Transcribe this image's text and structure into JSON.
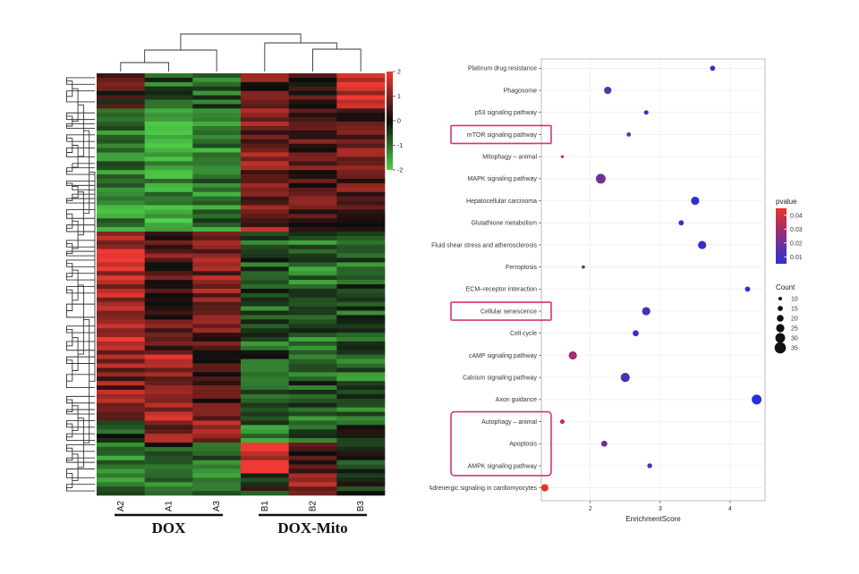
{
  "chart_data": [
    {
      "type": "heatmap",
      "columns": [
        "A2",
        "A1",
        "A3",
        "B1",
        "B2",
        "B3"
      ],
      "groups": [
        {
          "label": "DOX",
          "columns": [
            "A2",
            "A1",
            "A3"
          ]
        },
        {
          "label": "DOX-Mito",
          "columns": [
            "B1",
            "B2",
            "B3"
          ]
        }
      ],
      "colorbar": {
        "min": -2,
        "max": 2,
        "ticks": [
          "2",
          "1",
          "0",
          "-1",
          "-2"
        ],
        "colors": [
          "#4fd04a",
          "#0c0c0c",
          "#ee3a32"
        ]
      },
      "row_dendrogram": true,
      "column_dendrogram": true
    },
    {
      "type": "scatter",
      "xlabel": "EnrichmentScore",
      "xlim": [
        1.3,
        4.5
      ],
      "xticks": [
        "2",
        "3",
        "4"
      ],
      "legend_color_title": "pvalue",
      "legend_color_ticks": [
        "0.04",
        "0.03",
        "0.02",
        "0.01"
      ],
      "legend_color_range": [
        0.005,
        0.045
      ],
      "legend_size_title": "Count",
      "legend_size_ticks": [
        "10",
        "15",
        "20",
        "25",
        "30",
        "35"
      ],
      "highlighted": [
        "mTOR signaling pathway",
        "Cellular senescence",
        "Autophagy – animal",
        "Apoptosis",
        "AMPK signaling pathway"
      ],
      "points": [
        {
          "term": "Platinum drug resistance",
          "score": 3.75,
          "count": 15,
          "pvalue": 0.008
        },
        {
          "term": "Phagosome",
          "score": 2.25,
          "count": 22,
          "pvalue": 0.015
        },
        {
          "term": "p53 signaling pathway",
          "score": 2.8,
          "count": 13,
          "pvalue": 0.01
        },
        {
          "term": "mTOR signaling pathway",
          "score": 2.55,
          "count": 12,
          "pvalue": 0.015
        },
        {
          "term": "Mitophagy – animal",
          "score": 1.6,
          "count": 8,
          "pvalue": 0.035
        },
        {
          "term": "MAPK signaling pathway",
          "score": 2.15,
          "count": 30,
          "pvalue": 0.02
        },
        {
          "term": "Hepatocellular carcinoma",
          "score": 3.5,
          "count": 25,
          "pvalue": 0.006
        },
        {
          "term": "Glutathione metabolism",
          "score": 3.3,
          "count": 15,
          "pvalue": 0.008
        },
        {
          "term": "Fluid shear stress and atherosclerosis",
          "score": 3.6,
          "count": 25,
          "pvalue": 0.007
        },
        {
          "term": "Ferroptosis",
          "score": 1.9,
          "count": 9,
          "pvalue": 0.02
        },
        {
          "term": "ECM–receptor interaction",
          "score": 4.25,
          "count": 15,
          "pvalue": 0.005
        },
        {
          "term": "Cellular senescence",
          "score": 2.8,
          "count": 25,
          "pvalue": 0.012
        },
        {
          "term": "Cell cycle",
          "score": 2.65,
          "count": 18,
          "pvalue": 0.01
        },
        {
          "term": "cAMP signaling pathway",
          "score": 1.75,
          "count": 25,
          "pvalue": 0.03
        },
        {
          "term": "Calcium signaling pathway",
          "score": 2.5,
          "count": 28,
          "pvalue": 0.012
        },
        {
          "term": "Axon guidance",
          "score": 4.38,
          "count": 30,
          "pvalue": 0.005
        },
        {
          "term": "Autophagy – animal",
          "score": 1.6,
          "count": 13,
          "pvalue": 0.035
        },
        {
          "term": "Apoptosis",
          "score": 2.2,
          "count": 18,
          "pvalue": 0.02
        },
        {
          "term": "AMPK signaling pathway",
          "score": 2.85,
          "count": 14,
          "pvalue": 0.012
        },
        {
          "term": "Adrenergic signaling in cardiomyocytes",
          "score": 1.35,
          "count": 22,
          "pvalue": 0.045
        }
      ]
    }
  ]
}
